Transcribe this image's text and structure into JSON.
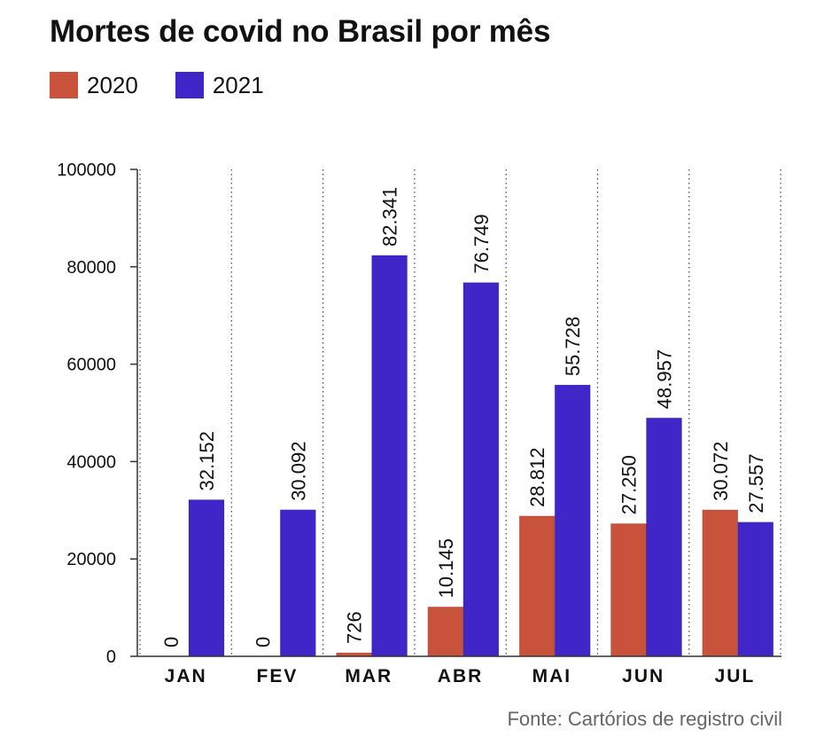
{
  "title": "Mortes de covid no Brasil por mês",
  "source": "Fonte: Cartórios de registro civil",
  "colors": {
    "2020": "#c9533a",
    "2021": "#4025c9"
  },
  "chart_data": {
    "type": "bar",
    "title": "Mortes de covid no Brasil por mês",
    "xlabel": "",
    "ylabel": "",
    "ylim": [
      0,
      100000
    ],
    "yticks": [
      0,
      20000,
      40000,
      60000,
      80000,
      100000
    ],
    "ytick_labels": [
      "0",
      "20000",
      "40000",
      "60000",
      "80000",
      "100000"
    ],
    "categories": [
      "JAN",
      "FEV",
      "MAR",
      "ABR",
      "MAI",
      "JUN",
      "JUL"
    ],
    "legend_position": "top-left",
    "grid": "vertical dotted separators",
    "series": [
      {
        "name": "2020",
        "color": "#c9533a",
        "values": [
          0,
          0,
          726,
          10145,
          28812,
          27250,
          30072
        ],
        "labels": [
          "0",
          "0",
          "726",
          "10.145",
          "28.812",
          "27.250",
          "30.072"
        ]
      },
      {
        "name": "2021",
        "color": "#4025c9",
        "values": [
          32152,
          30092,
          82341,
          76749,
          55728,
          48957,
          27557
        ],
        "labels": [
          "32.152",
          "30.092",
          "82.341",
          "76.749",
          "55.728",
          "48.957",
          "27.557"
        ]
      }
    ]
  }
}
